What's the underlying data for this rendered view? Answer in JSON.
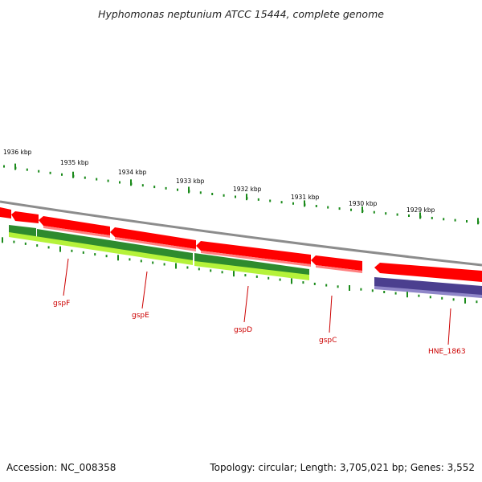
{
  "title": "Hyphomonas neptunium ATCC 15444, complete genome",
  "footer": {
    "accession": "Accession: NC_008358",
    "summary": "Topology: circular; Length: 3,705,021 bp; Genes: 3,552"
  },
  "ruler": {
    "labels": [
      "1936 kbp",
      "1935 kbp",
      "1934 kbp",
      "1933 kbp",
      "1932 kbp",
      "1931 kbp",
      "1930 kbp",
      "1929 kbp"
    ],
    "tick_color": "#1a8a1a"
  },
  "colors": {
    "backbone": "#8c8c8c",
    "cds_forward": "#ff0000",
    "cds_highlight": "#ff8080",
    "gene_dark": "#2e8b2e",
    "gene_light": "#b5f23a",
    "other_feature": "#4b3f8f",
    "label": "#cc0000"
  },
  "gene_labels": [
    "gspF",
    "gspE",
    "gspD",
    "gspC",
    "HNE_1863"
  ]
}
